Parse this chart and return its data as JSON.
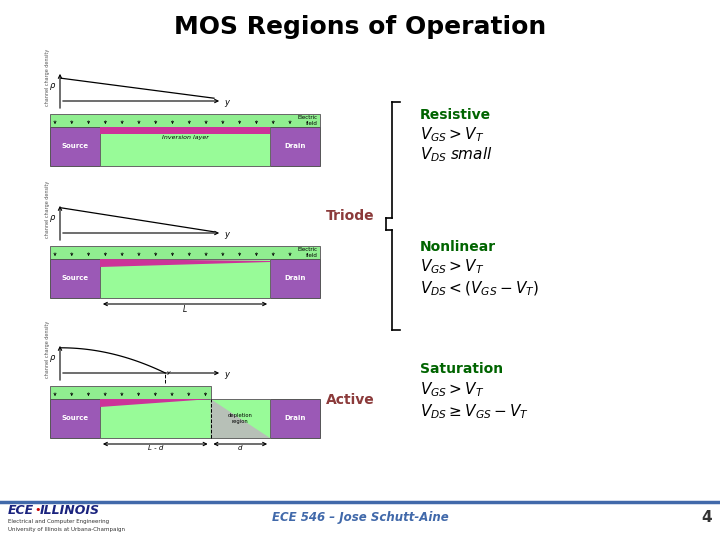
{
  "title": "MOS Regions of Operation",
  "title_fontsize": 18,
  "title_color": "#000000",
  "background_color": "#ffffff",
  "label_triode": "Triode",
  "label_active": "Active",
  "label_color": "#8B3A3A",
  "label_resistive": "Resistive",
  "label_nonlinear": "Nonlinear",
  "label_saturation": "Saturation",
  "section_color": "#006400",
  "footer_text": "ECE 546 – Jose Schutt-Aine",
  "footer_color": "#4169aa",
  "footer_number": "4",
  "footer_line_color": "#4169aa",
  "math_color": "#000000",
  "resistive_eq1": "$V_{GS} > V_T$",
  "resistive_eq2": "$V_{DS}\\; small$",
  "nonlinear_eq1": "$V_{GS} > V_T$",
  "nonlinear_eq2": "$V_{DS} < (V_{GS} - V_T)$",
  "saturation_eq1": "$V_{GS} > V_T$",
  "saturation_eq2": "$V_{DS} \\geq V_{GS} - V_T$",
  "gate_color": "#90EE90",
  "body_color": "#98FB98",
  "source_drain_color": "#9B59B6",
  "inversion_color": "#cc3399",
  "depletion_color": "#cc99cc"
}
